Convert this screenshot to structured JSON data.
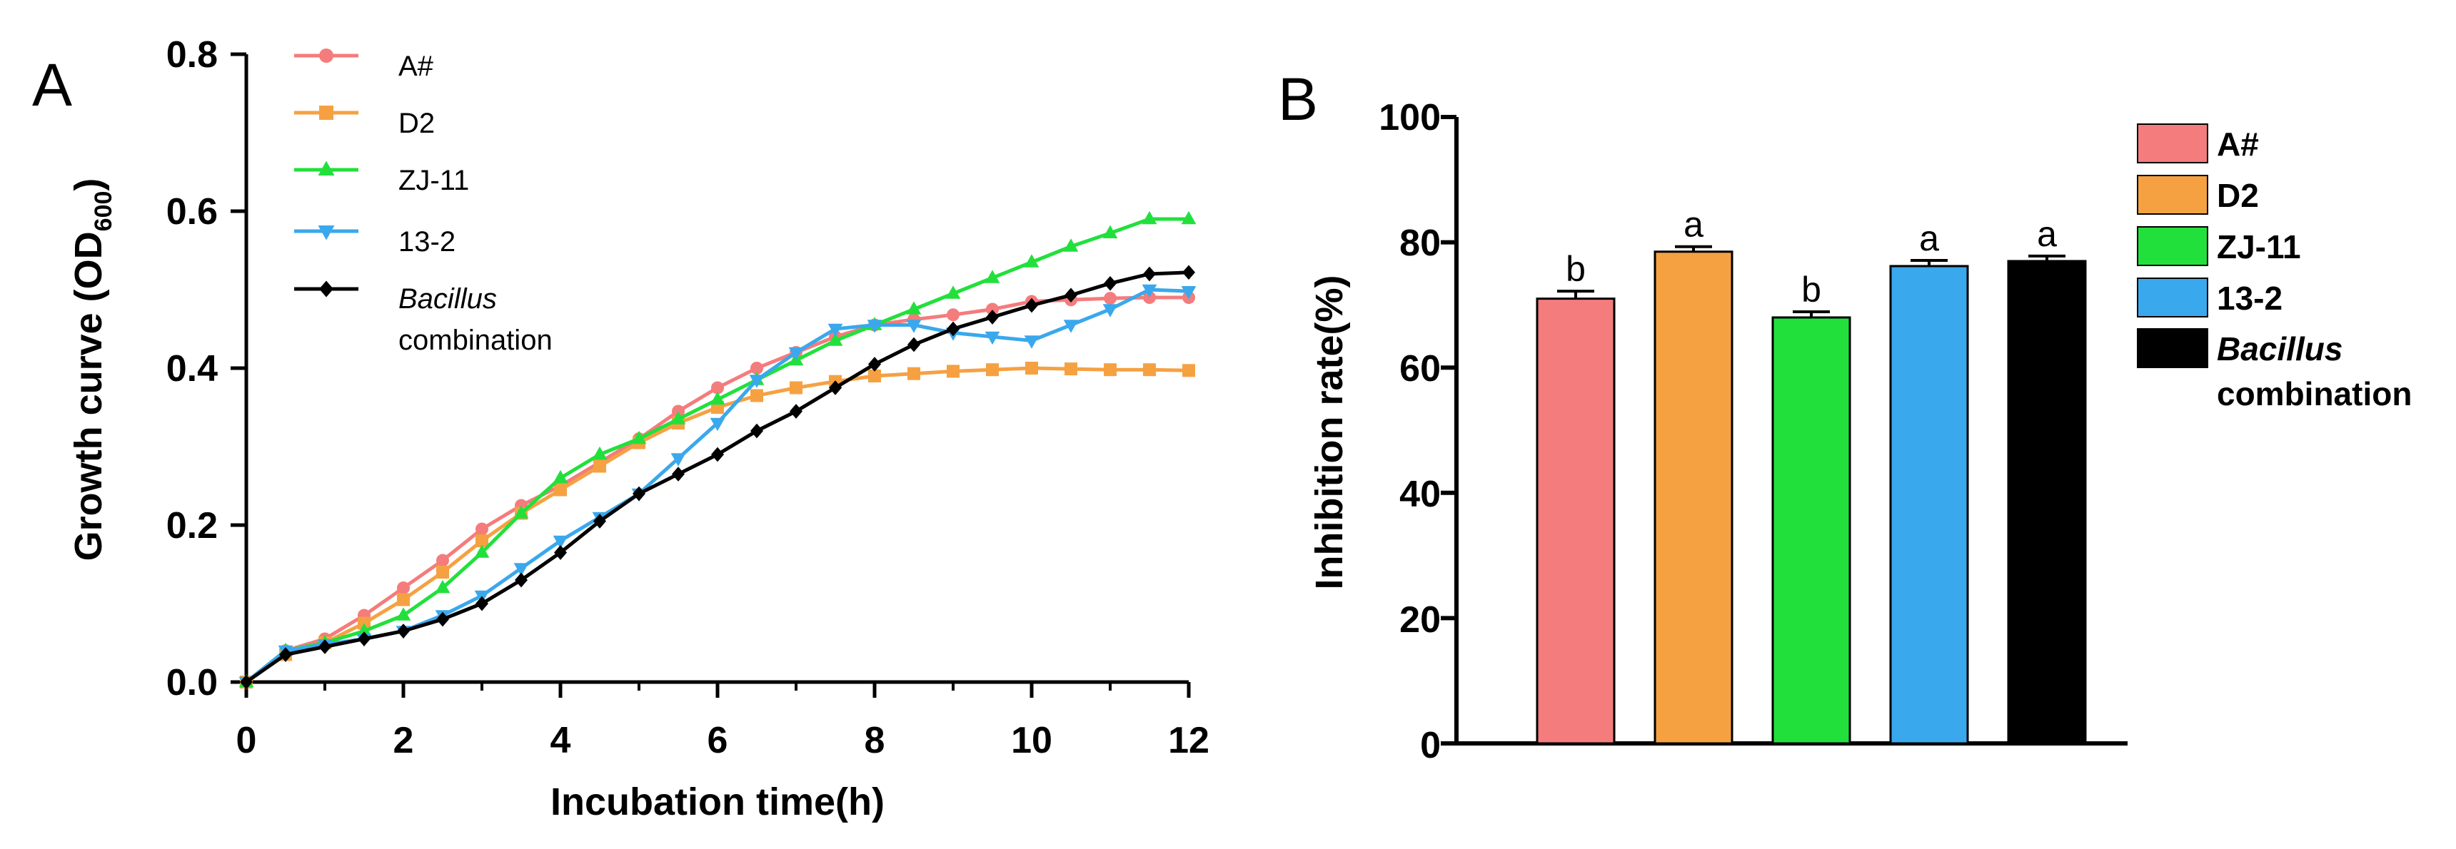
{
  "chart_data": [
    {
      "panel": "A",
      "type": "line",
      "xlabel": "Incubation time(h)",
      "ylabel_main": "Growth curve (OD",
      "ylabel_sub": "600",
      "ylabel_end": ")",
      "xlim": [
        0,
        12
      ],
      "ylim": [
        0,
        0.8
      ],
      "xticks": [
        "0",
        "2",
        "4",
        "6",
        "8",
        "10",
        "12"
      ],
      "yticks": [
        "0.0",
        "0.2",
        "0.4",
        "0.6",
        "0.8"
      ],
      "x": [
        0,
        0.5,
        1,
        1.5,
        2,
        2.5,
        3,
        3.5,
        4,
        4.5,
        5,
        5.5,
        6,
        6.5,
        7,
        7.5,
        8,
        8.5,
        9,
        9.5,
        10,
        10.5,
        11,
        11.5,
        12
      ],
      "series": [
        {
          "name": "A#",
          "color": "#f47c7c",
          "marker": "circle",
          "values": [
            0.0,
            0.04,
            0.055,
            0.085,
            0.12,
            0.155,
            0.195,
            0.225,
            0.25,
            0.28,
            0.31,
            0.345,
            0.375,
            0.4,
            0.42,
            0.44,
            0.455,
            0.462,
            0.468,
            0.475,
            0.485,
            0.487,
            0.489,
            0.49,
            0.49
          ]
        },
        {
          "name": "D2",
          "color": "#f5a142",
          "marker": "square",
          "values": [
            0.0,
            0.035,
            0.05,
            0.075,
            0.105,
            0.14,
            0.18,
            0.215,
            0.245,
            0.275,
            0.305,
            0.33,
            0.35,
            0.365,
            0.375,
            0.383,
            0.39,
            0.393,
            0.396,
            0.398,
            0.4,
            0.399,
            0.398,
            0.398,
            0.397
          ]
        },
        {
          "name": "ZJ-11",
          "color": "#22e03c",
          "marker": "triangle-up",
          "values": [
            0.0,
            0.04,
            0.05,
            0.065,
            0.085,
            0.12,
            0.165,
            0.215,
            0.26,
            0.29,
            0.31,
            0.335,
            0.36,
            0.385,
            0.41,
            0.435,
            0.455,
            0.475,
            0.495,
            0.515,
            0.535,
            0.555,
            0.572,
            0.59,
            0.59
          ]
        },
        {
          "name": "13-2",
          "color": "#3aa8ec",
          "marker": "triangle-down",
          "values": [
            0.0,
            0.04,
            0.048,
            0.055,
            0.065,
            0.085,
            0.11,
            0.145,
            0.18,
            0.21,
            0.24,
            0.285,
            0.33,
            0.385,
            0.42,
            0.45,
            0.455,
            0.455,
            0.445,
            0.44,
            0.435,
            0.455,
            0.475,
            0.5,
            0.498
          ]
        },
        {
          "name_italic": "Bacillus",
          "name_rest": "combination",
          "color": "#000000",
          "marker": "diamond",
          "values": [
            0.0,
            0.035,
            0.045,
            0.055,
            0.065,
            0.08,
            0.1,
            0.13,
            0.165,
            0.205,
            0.24,
            0.265,
            0.29,
            0.32,
            0.345,
            0.375,
            0.405,
            0.43,
            0.45,
            0.465,
            0.48,
            0.493,
            0.508,
            0.52,
            0.522
          ]
        }
      ]
    },
    {
      "panel": "B",
      "type": "bar",
      "ylabel": "Inhibition rate(%)",
      "ylim": [
        0,
        100
      ],
      "yticks": [
        "0",
        "20",
        "40",
        "60",
        "80",
        "100"
      ],
      "bars": [
        {
          "name": "A#",
          "value": 71,
          "error": 1.2,
          "sig": "b",
          "color": "#f47c7c"
        },
        {
          "name": "D2",
          "value": 78.5,
          "error": 0.8,
          "sig": "a",
          "color": "#f5a142"
        },
        {
          "name": "ZJ-11",
          "value": 68,
          "error": 0.9,
          "sig": "b",
          "color": "#22e03c"
        },
        {
          "name": "13-2",
          "value": 76.2,
          "error": 0.9,
          "sig": "a",
          "color": "#3aa8ec"
        },
        {
          "name_italic": "Bacillus",
          "name_rest": "combination",
          "value": 77,
          "error": 0.8,
          "sig": "a",
          "color": "#000000"
        }
      ]
    }
  ]
}
